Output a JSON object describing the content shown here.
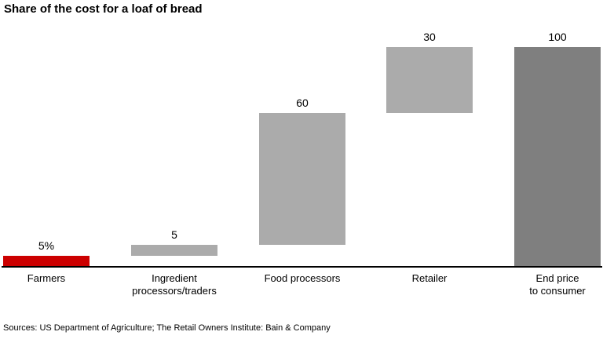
{
  "header": {
    "title": "Share of the cost for a loaf of bread"
  },
  "footer": {
    "source": "Sources: US Department of Agriculture; The Retail Owners Institute: Bain & Company"
  },
  "colors": {
    "highlight_red": "#CC0000",
    "step_gray": "#ABABAB",
    "total_gray": "#7F7F7F",
    "axis_black": "#000000",
    "text_black": "#000000",
    "background": "#FFFFFF"
  },
  "chart_data": {
    "type": "bar",
    "subtype": "waterfall",
    "title": "Share of the cost for a loaf of bread",
    "xlabel": "",
    "ylabel": "",
    "ylim": [
      0,
      100
    ],
    "grid": false,
    "legend": false,
    "categories": [
      "Farmers",
      "Ingredient\nprocessors/traders",
      "Food processors",
      "Retailer",
      "End price\nto consumer"
    ],
    "values": [
      5,
      5,
      60,
      30,
      100
    ],
    "segments": [
      {
        "start": 0,
        "end": 5
      },
      {
        "start": 5,
        "end": 10
      },
      {
        "start": 10,
        "end": 70
      },
      {
        "start": 70,
        "end": 100
      },
      {
        "start": 0,
        "end": 100
      }
    ],
    "value_labels": [
      "5%",
      "5",
      "60",
      "30",
      "100"
    ],
    "bar_colors": [
      "#CC0000",
      "#ABABAB",
      "#ABABAB",
      "#ABABAB",
      "#7F7F7F"
    ],
    "bar_roles": [
      "highlighted-step",
      "step",
      "step",
      "step",
      "total"
    ]
  }
}
